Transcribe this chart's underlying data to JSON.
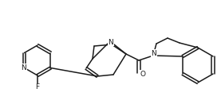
{
  "bg_color": "#ffffff",
  "line_color": "#1a1a1a",
  "lw": 1.1,
  "fig_width": 2.77,
  "fig_height": 1.36,
  "dpi": 100,
  "labels": {
    "N_py": "N",
    "F": "F",
    "N_bicy": "N",
    "O": "O",
    "N_quin": "N"
  }
}
